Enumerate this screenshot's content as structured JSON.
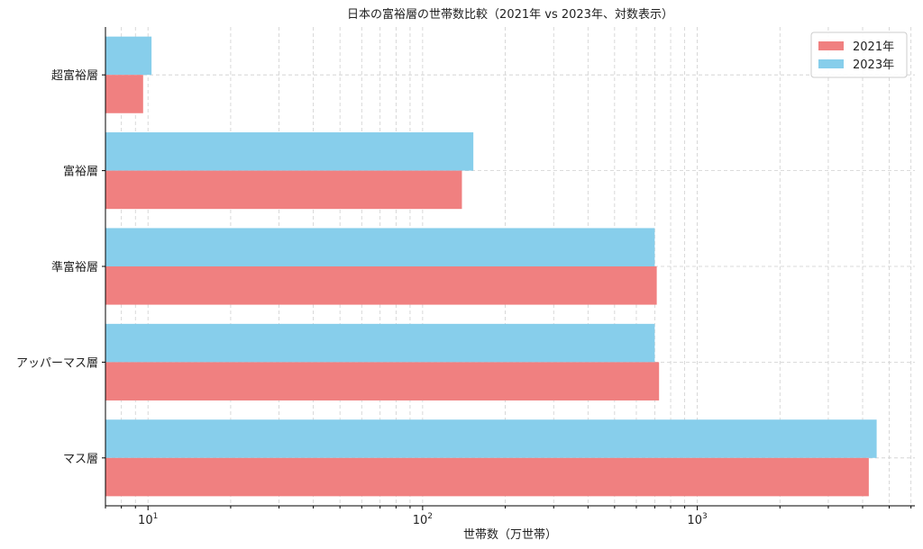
{
  "chart_data": {
    "type": "bar",
    "orientation": "horizontal",
    "title": "日本の富裕層の世帯数比較（2021年 vs 2023年、対数表示）",
    "xlabel": "世帯数（万世帯）",
    "ylabel": "",
    "x_scale": "log",
    "xlim": [
      7,
      6200
    ],
    "x_ticks": [
      {
        "value": 10,
        "base": "10",
        "exp": "1"
      },
      {
        "value": 100,
        "base": "10",
        "exp": "2"
      },
      {
        "value": 1000,
        "base": "10",
        "exp": "3"
      }
    ],
    "categories": [
      "超富裕層",
      "富裕層",
      "準富裕層",
      "アッパーマス層",
      "マス層"
    ],
    "series": [
      {
        "name": "2021年",
        "color": "#f08080",
        "values": [
          9.6,
          139,
          712,
          726,
          4213
        ]
      },
      {
        "name": "2023年",
        "color": "#87ceeb",
        "values": [
          10.3,
          153,
          700,
          700,
          4500
        ]
      }
    ],
    "grid": true,
    "legend_position": "top-right"
  }
}
